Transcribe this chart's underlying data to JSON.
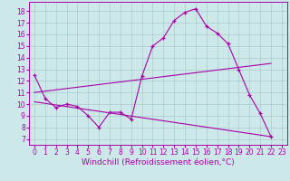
{
  "xlabel": "Windchill (Refroidissement éolien,°C)",
  "bg_color": "#cce8e8",
  "grid_color": "#aacccc",
  "line_color": "#aa00aa",
  "x_ticks": [
    0,
    1,
    2,
    3,
    4,
    5,
    6,
    7,
    8,
    9,
    10,
    11,
    12,
    13,
    14,
    15,
    16,
    17,
    18,
    19,
    20,
    21,
    22,
    23
  ],
  "y_ticks": [
    7,
    8,
    9,
    10,
    11,
    12,
    13,
    14,
    15,
    16,
    17,
    18
  ],
  "ylim": [
    6.5,
    18.8
  ],
  "xlim": [
    -0.5,
    23.5
  ],
  "curve1_x": [
    0,
    1,
    2,
    3,
    4,
    5,
    6,
    7,
    8,
    9,
    10,
    11,
    12,
    13,
    14,
    15,
    16,
    17,
    18,
    19,
    20,
    21,
    22
  ],
  "curve1_y": [
    12.5,
    10.5,
    9.7,
    10.0,
    9.8,
    9.0,
    8.0,
    9.3,
    9.3,
    8.7,
    12.4,
    15.0,
    15.7,
    17.2,
    17.9,
    18.2,
    16.7,
    16.1,
    15.2,
    13.0,
    10.8,
    9.2,
    7.2
  ],
  "curve2_x": [
    0,
    22
  ],
  "curve2_y": [
    11.0,
    13.5
  ],
  "curve3_x": [
    0,
    22
  ],
  "curve3_y": [
    10.2,
    7.2
  ],
  "tick_fontsize": 5.5,
  "label_fontsize": 6.5
}
